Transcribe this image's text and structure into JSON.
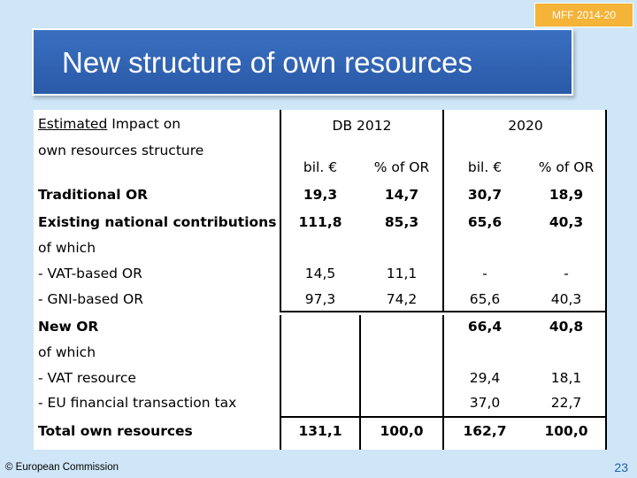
{
  "badge": "MFF 2014-20",
  "title": "New structure of own resources",
  "table": {
    "header_estimated": "Estimated",
    "header_impact": " Impact on",
    "header_line2": "own resources structure",
    "group_db": "DB 2012",
    "group_2020": "2020",
    "sub_bil_1": "bil. €",
    "sub_pct_1": "% of OR",
    "sub_bil_2": "bil. €",
    "sub_pct_2": "% of OR",
    "rows": {
      "traditional": {
        "label": "Traditional OR",
        "v1": "19,3",
        "v2": "14,7",
        "v3": "30,7",
        "v4": "18,9"
      },
      "existing": {
        "label": "Existing national contributions",
        "v1": "111,8",
        "v2": "85,3",
        "v3": "65,6",
        "v4": "40,3"
      },
      "of_which_1": "of which",
      "vat_based": {
        "label": "- VAT-based OR",
        "v1": "14,5",
        "v2": "11,1",
        "v3": "-",
        "v4": "-"
      },
      "gni_based": {
        "label": "- GNI-based OR",
        "v1": "97,3",
        "v2": "74,2",
        "v3": "65,6",
        "v4": "40,3"
      },
      "new_or": {
        "label": "New OR",
        "v3": "66,4",
        "v4": "40,8"
      },
      "of_which_2": "of which",
      "vat_resource": {
        "label": "- VAT resource",
        "v3": "29,4",
        "v4": "18,1"
      },
      "ftt": {
        "label": "- EU financial transaction tax",
        "v3": "37,0",
        "v4": "22,7"
      },
      "total": {
        "label": "Total own resources",
        "v1": "131,1",
        "v2": "100,0",
        "v3": "162,7",
        "v4": "100,0"
      }
    }
  },
  "footer": "© European Commission",
  "page_number": "23"
}
